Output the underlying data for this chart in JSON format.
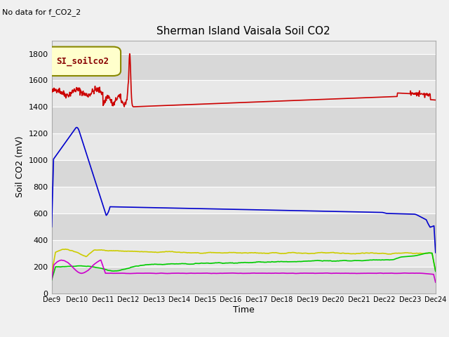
{
  "title": "Sherman Island Vaisala Soil CO2",
  "no_data_text": "No data for f_CO2_2",
  "ylabel": "Soil CO2 (mV)",
  "xlabel": "Time",
  "legend_label": "SI_soilco2",
  "ylim": [
    0,
    1900
  ],
  "yticks": [
    0,
    200,
    400,
    600,
    800,
    1000,
    1200,
    1400,
    1600,
    1800
  ],
  "x_labels": [
    "Dec 9",
    "Dec 10",
    "Dec 11",
    "Dec 12",
    "Dec 13",
    "Dec 14",
    "Dec 15",
    "Dec 16",
    "Dec 17",
    "Dec 18",
    "Dec 19",
    "Dec 20",
    "Dec 21",
    "Dec 22",
    "Dec 23",
    "Dec 24"
  ],
  "series_colors": {
    "CO2_1": "#cc0000",
    "CO2_3": "#cccc00",
    "CO2_4": "#00cc00",
    "CO2_5": "#0000cc",
    "CO2_6": "#cc00cc"
  },
  "fig_bg_color": "#f0f0f0",
  "plot_bg_color": "#e8e8e8",
  "grid_color": "#ffffff",
  "band_colors": [
    "#d8d8d8",
    "#e8e8e8"
  ]
}
